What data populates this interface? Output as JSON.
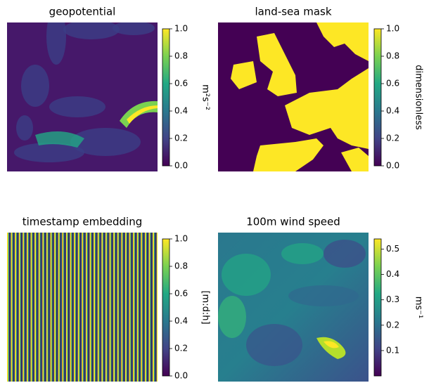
{
  "chart_data": [
    {
      "type": "heatmap",
      "title": "geopotential",
      "colorbar_label": "m²s⁻²",
      "colormap": "viridis",
      "ylim": [
        0,
        1
      ],
      "yticks": [
        {
          "value": 0,
          "label": "0.0"
        },
        0.2,
        0.4,
        0.6,
        0.8,
        {
          "value": 1,
          "label": "1.0"
        }
      ]
    },
    {
      "type": "heatmap",
      "title": "land-sea mask",
      "colorbar_label": "dimensionless",
      "colormap": "viridis",
      "ylim": [
        0,
        1
      ],
      "yticks": [
        {
          "value": 0,
          "label": "0.0"
        },
        0.2,
        0.4,
        0.6,
        0.8,
        {
          "value": 1,
          "label": "1.0"
        }
      ]
    },
    {
      "type": "heatmap",
      "title": "timestamp embedding",
      "colorbar_label": "[m:d:h]",
      "colormap": "viridis",
      "ylim": [
        0,
        1
      ],
      "yticks": [
        {
          "value": 0,
          "label": "0.0"
        },
        0.2,
        0.4,
        0.6,
        0.8,
        {
          "value": 1,
          "label": "1.0"
        }
      ]
    },
    {
      "type": "heatmap",
      "title": "100m wind speed",
      "colorbar_label": "ms⁻¹",
      "colormap": "viridis",
      "ylim": [
        0,
        0.54
      ],
      "yticks": [
        0.1,
        0.2,
        0.3,
        0.4,
        0.5
      ]
    }
  ]
}
